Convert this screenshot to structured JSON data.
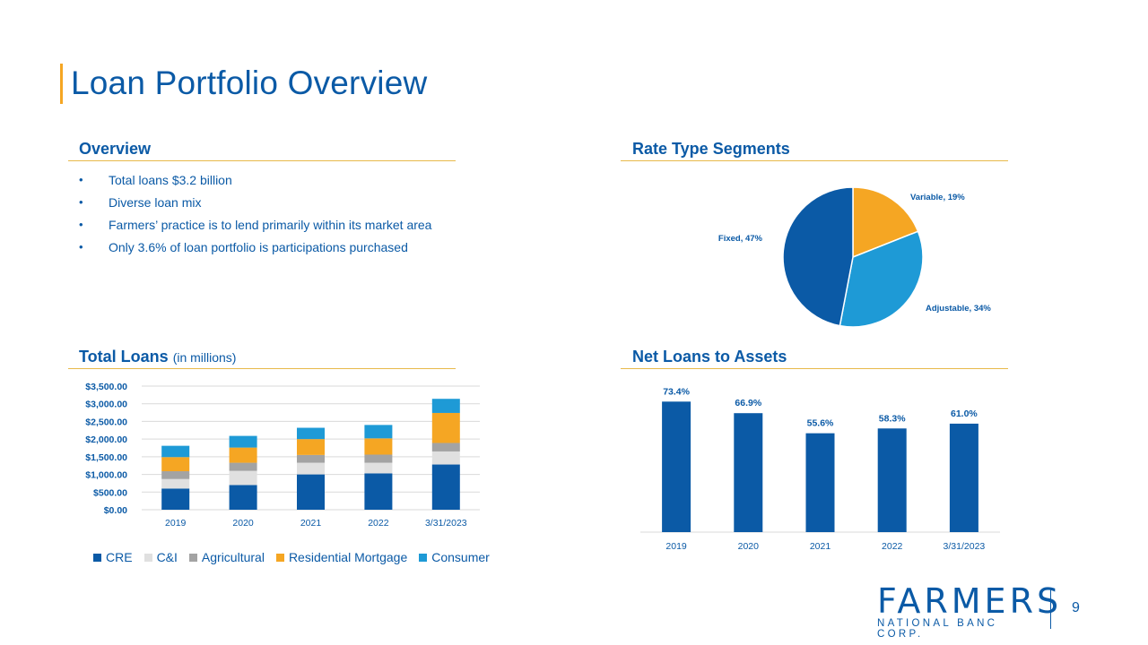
{
  "page": {
    "title": "Loan Portfolio Overview",
    "page_number": "9"
  },
  "overview": {
    "heading": "Overview",
    "bullets": [
      "Total loans $3.2 billion",
      "Diverse loan mix",
      "Farmers’ practice is to lend primarily within its market area",
      "Only 3.6% of loan portfolio is participations purchased"
    ]
  },
  "rate_type": {
    "heading": "Rate Type Segments"
  },
  "total_loans": {
    "heading": "Total Loans",
    "heading_sub": "(in millions)"
  },
  "net_loans": {
    "heading": "Net Loans to Assets"
  },
  "logo": {
    "name": "FARMERS",
    "tagline": "NATIONAL BANC CORP."
  },
  "colors": {
    "brand_blue": "#0b5aa6",
    "accent_orange": "#f5a623",
    "light_blue": "#1e9ad6",
    "gray": "#a3a3a3",
    "light_gray": "#e0e0e0"
  },
  "chart_data": [
    {
      "id": "rate-type-pie",
      "type": "pie",
      "title": "Rate Type Segments",
      "slices": [
        {
          "label": "Variable, 19%",
          "value": 19,
          "color": "#f5a623"
        },
        {
          "label": "Adjustable, 34%",
          "value": 34,
          "color": "#1e9ad6"
        },
        {
          "label": "Fixed, 47%",
          "value": 47,
          "color": "#0b5aa6"
        }
      ]
    },
    {
      "id": "total-loans-bar",
      "type": "bar",
      "stacked": true,
      "title": "Total Loans (in millions)",
      "categories": [
        "2019",
        "2020",
        "2021",
        "2022",
        "3/31/2023"
      ],
      "ylim": [
        0,
        3500
      ],
      "yticks": [
        0,
        500,
        1000,
        1500,
        2000,
        2500,
        3000,
        3500
      ],
      "ytick_labels": [
        "$0.00",
        "$500.00",
        "$1,000.00",
        "$1,500.00",
        "$2,000.00",
        "$2,500.00",
        "$3,000.00",
        "$3,500.00"
      ],
      "grid": true,
      "legend": "bottom",
      "series": [
        {
          "name": "CRE",
          "color": "#0b5aa6",
          "values": [
            600,
            700,
            1000,
            1030,
            1280
          ]
        },
        {
          "name": "C&I",
          "color": "#e0e0e0",
          "values": [
            270,
            400,
            330,
            300,
            370
          ]
        },
        {
          "name": "Agricultural",
          "color": "#a3a3a3",
          "values": [
            220,
            230,
            220,
            230,
            240
          ]
        },
        {
          "name": "Residential Mortgage",
          "color": "#f5a623",
          "values": [
            400,
            430,
            450,
            460,
            850
          ]
        },
        {
          "name": "Consumer",
          "color": "#1e9ad6",
          "values": [
            320,
            330,
            320,
            380,
            400
          ]
        }
      ]
    },
    {
      "id": "net-loans-bar",
      "type": "bar",
      "title": "Net Loans to Assets",
      "categories": [
        "2019",
        "2020",
        "2021",
        "2022",
        "3/31/2023"
      ],
      "values": [
        73.4,
        66.9,
        55.6,
        58.3,
        61.0
      ],
      "data_labels": [
        "73.4%",
        "66.9%",
        "55.6%",
        "58.3%",
        "61.0%"
      ],
      "ylim": [
        0,
        80
      ],
      "color": "#0b5aa6"
    }
  ]
}
